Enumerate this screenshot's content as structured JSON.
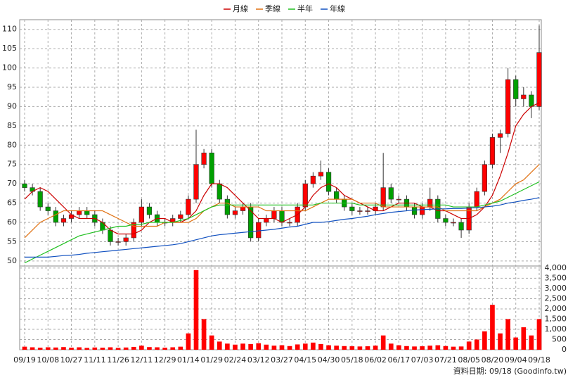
{
  "chart_data": {
    "type": "candlestick",
    "categories": [
      "09/19",
      null,
      null,
      "10/08",
      null,
      null,
      "10/27",
      null,
      null,
      "11/11",
      null,
      null,
      "11/26",
      null,
      null,
      "12/11",
      null,
      null,
      "12/29",
      null,
      null,
      "01/14",
      null,
      null,
      "01/29",
      null,
      null,
      "02/24",
      null,
      null,
      "03/12",
      null,
      null,
      "03/27",
      null,
      null,
      "04/15",
      null,
      null,
      "04/30",
      null,
      null,
      "05/18",
      null,
      null,
      "06/02",
      null,
      null,
      "06/17",
      null,
      null,
      "07/03",
      null,
      null,
      "07/21",
      null,
      null,
      "08/05",
      null,
      null,
      "08/20",
      null,
      null,
      "09/04",
      null,
      null,
      "09/18"
    ],
    "open": [
      70,
      69,
      68,
      64,
      63,
      60,
      61,
      62,
      63,
      62,
      60,
      58,
      55,
      55,
      56,
      60,
      64,
      62,
      60,
      60,
      61,
      62,
      66,
      75,
      78,
      70,
      66,
      62,
      63,
      64,
      56,
      60,
      61,
      63,
      60,
      60,
      64,
      70,
      72,
      73,
      68,
      66,
      64,
      63,
      63,
      63,
      64,
      69,
      66,
      66,
      64,
      62,
      64,
      66,
      61,
      60,
      60,
      58,
      64,
      68,
      75,
      82,
      83,
      97,
      92,
      93,
      90
    ],
    "high": [
      71,
      70,
      69,
      65,
      64,
      62,
      63,
      64,
      64,
      63,
      61,
      59,
      56,
      57,
      61,
      66,
      65,
      63,
      61,
      62,
      63,
      67,
      84,
      79,
      79,
      71,
      67,
      64,
      65,
      65,
      61,
      62,
      64,
      64,
      61,
      65,
      71,
      73,
      76,
      74,
      69,
      67,
      65,
      64,
      64,
      65,
      78,
      70,
      67,
      67,
      65,
      65,
      69,
      67,
      62,
      61,
      61,
      65,
      69,
      76,
      83,
      84,
      100,
      98,
      95,
      94,
      111
    ],
    "low": [
      68,
      67,
      63,
      62,
      59,
      59,
      60,
      61,
      61,
      59,
      57,
      54,
      54,
      54,
      55,
      59,
      61,
      59,
      59,
      59,
      60,
      61,
      65,
      74,
      69,
      65,
      61,
      61,
      62,
      55,
      55,
      59,
      60,
      59,
      59,
      59,
      63,
      69,
      71,
      67,
      65,
      63,
      62,
      62,
      62,
      62,
      63,
      65,
      65,
      63,
      61,
      61,
      63,
      60,
      59,
      59,
      56,
      57,
      63,
      67,
      74,
      78,
      82,
      90,
      90,
      87,
      89
    ],
    "close": [
      69,
      68,
      64,
      63,
      60,
      61,
      62,
      63,
      62,
      60,
      58,
      55,
      55,
      56,
      60,
      64,
      62,
      60,
      60,
      61,
      62,
      66,
      75,
      78,
      70,
      66,
      62,
      63,
      64,
      56,
      60,
      61,
      63,
      60,
      60,
      64,
      70,
      72,
      73,
      68,
      66,
      64,
      63,
      63,
      63,
      64,
      69,
      66,
      66,
      64,
      62,
      64,
      66,
      61,
      60,
      60,
      58,
      64,
      68,
      75,
      82,
      83,
      97,
      92,
      93,
      90,
      104
    ],
    "volume": [
      150,
      120,
      100,
      120,
      110,
      130,
      100,
      120,
      90,
      110,
      100,
      120,
      90,
      110,
      140,
      200,
      130,
      120,
      100,
      120,
      150,
      800,
      3900,
      1500,
      700,
      400,
      300,
      250,
      300,
      280,
      320,
      250,
      200,
      220,
      180,
      260,
      300,
      350,
      280,
      220,
      200,
      180,
      170,
      160,
      170,
      200,
      700,
      300,
      220,
      180,
      160,
      170,
      200,
      220,
      180,
      150,
      160,
      400,
      500,
      900,
      2200,
      800,
      1500,
      600,
      1100,
      700,
      1500
    ],
    "up_color": "#ff0000",
    "down_color": "#00a000",
    "volume_color": "#ff0000",
    "series": [
      {
        "name": "月線",
        "color": "#cc0000",
        "values": [
          66,
          68,
          69,
          68,
          66,
          64,
          62,
          61,
          61,
          61,
          60,
          58,
          57,
          57,
          57,
          58,
          60,
          61,
          61,
          60,
          60,
          61,
          63,
          67,
          70,
          70,
          69,
          67,
          65,
          63,
          61,
          61,
          61,
          60,
          61,
          62,
          64,
          67,
          69,
          70,
          69,
          67,
          66,
          65,
          64,
          63,
          63,
          64,
          65,
          65,
          65,
          64,
          64,
          63,
          63,
          62,
          61,
          61,
          62,
          64,
          67,
          72,
          78,
          85,
          88,
          90,
          91
        ]
      },
      {
        "name": "季線",
        "color": "#e07010",
        "values": [
          56,
          58,
          60,
          61,
          62,
          63,
          63,
          63,
          63,
          63,
          63,
          62,
          61,
          60,
          59,
          59,
          59,
          59,
          60,
          60,
          60,
          60,
          61,
          63,
          64,
          65,
          65,
          64,
          64,
          64,
          64,
          63,
          63,
          63,
          63,
          63,
          63,
          64,
          65,
          66,
          66,
          66,
          66,
          65,
          65,
          65,
          64,
          64,
          64,
          64,
          64,
          64,
          64,
          64,
          63,
          63,
          63,
          63,
          63,
          64,
          65,
          66,
          68,
          70,
          71,
          73,
          75
        ]
      },
      {
        "name": "半年",
        "color": "#20c020",
        "values": [
          49.5,
          50.5,
          51.5,
          52.5,
          53.5,
          54.5,
          55.5,
          56.5,
          57,
          57.5,
          58,
          58.5,
          59,
          59,
          59.5,
          59.5,
          60,
          60,
          60,
          60,
          60.5,
          61,
          62,
          63,
          64,
          64.5,
          64.5,
          64.5,
          64.5,
          64.5,
          64.5,
          64.5,
          64.5,
          64.5,
          64.5,
          64.5,
          64.5,
          64.5,
          65,
          65,
          65,
          65,
          65,
          64.5,
          64.5,
          64.5,
          64.5,
          64.5,
          64.5,
          64.5,
          64.5,
          64.5,
          64.5,
          64.5,
          64.5,
          64,
          64,
          64,
          64,
          64.5,
          65,
          65.5,
          66.5,
          67.5,
          68.5,
          69.5,
          70.5
        ]
      },
      {
        "name": "年線",
        "color": "#1050c0",
        "values": [
          51,
          51,
          51,
          51,
          51.2,
          51.4,
          51.5,
          51.7,
          52,
          52.2,
          52.4,
          52.6,
          52.8,
          53,
          53.2,
          53.4,
          53.6,
          53.8,
          54,
          54.2,
          54.5,
          55,
          55.5,
          56,
          56.5,
          56.8,
          57,
          57.2,
          57.4,
          57.6,
          57.8,
          58,
          58.2,
          58.5,
          58.8,
          59,
          59.5,
          60,
          60,
          60.2,
          60.5,
          60.8,
          61,
          61.3,
          61.6,
          62,
          62.3,
          62.6,
          62.8,
          63,
          63.2,
          63.3,
          63.4,
          63.5,
          63.5,
          63.6,
          63.6,
          63.7,
          63.8,
          64,
          64.2,
          64.5,
          65,
          65.3,
          65.7,
          66,
          66.4
        ]
      }
    ],
    "ylim": [
      48.7,
      112.5
    ],
    "yticks": [
      50,
      55,
      60,
      65,
      70,
      75,
      80,
      85,
      90,
      95,
      100,
      105,
      110
    ],
    "y2lim": [
      0,
      4100
    ],
    "y2ticks": [
      0,
      500,
      {
        "value": 1000,
        "label": "1,000"
      },
      {
        "value": 1500,
        "label": "1,500"
      },
      {
        "value": 2000,
        "label": "2,000"
      },
      {
        "value": 2500,
        "label": "2,500"
      },
      {
        "value": 3000,
        "label": "3,000"
      },
      {
        "value": 3500,
        "label": "3,500"
      },
      {
        "value": 4000,
        "label": "4,000"
      }
    ],
    "grid": true,
    "footer": "資料日期: 09/18 (Goodinfo.tw)"
  }
}
